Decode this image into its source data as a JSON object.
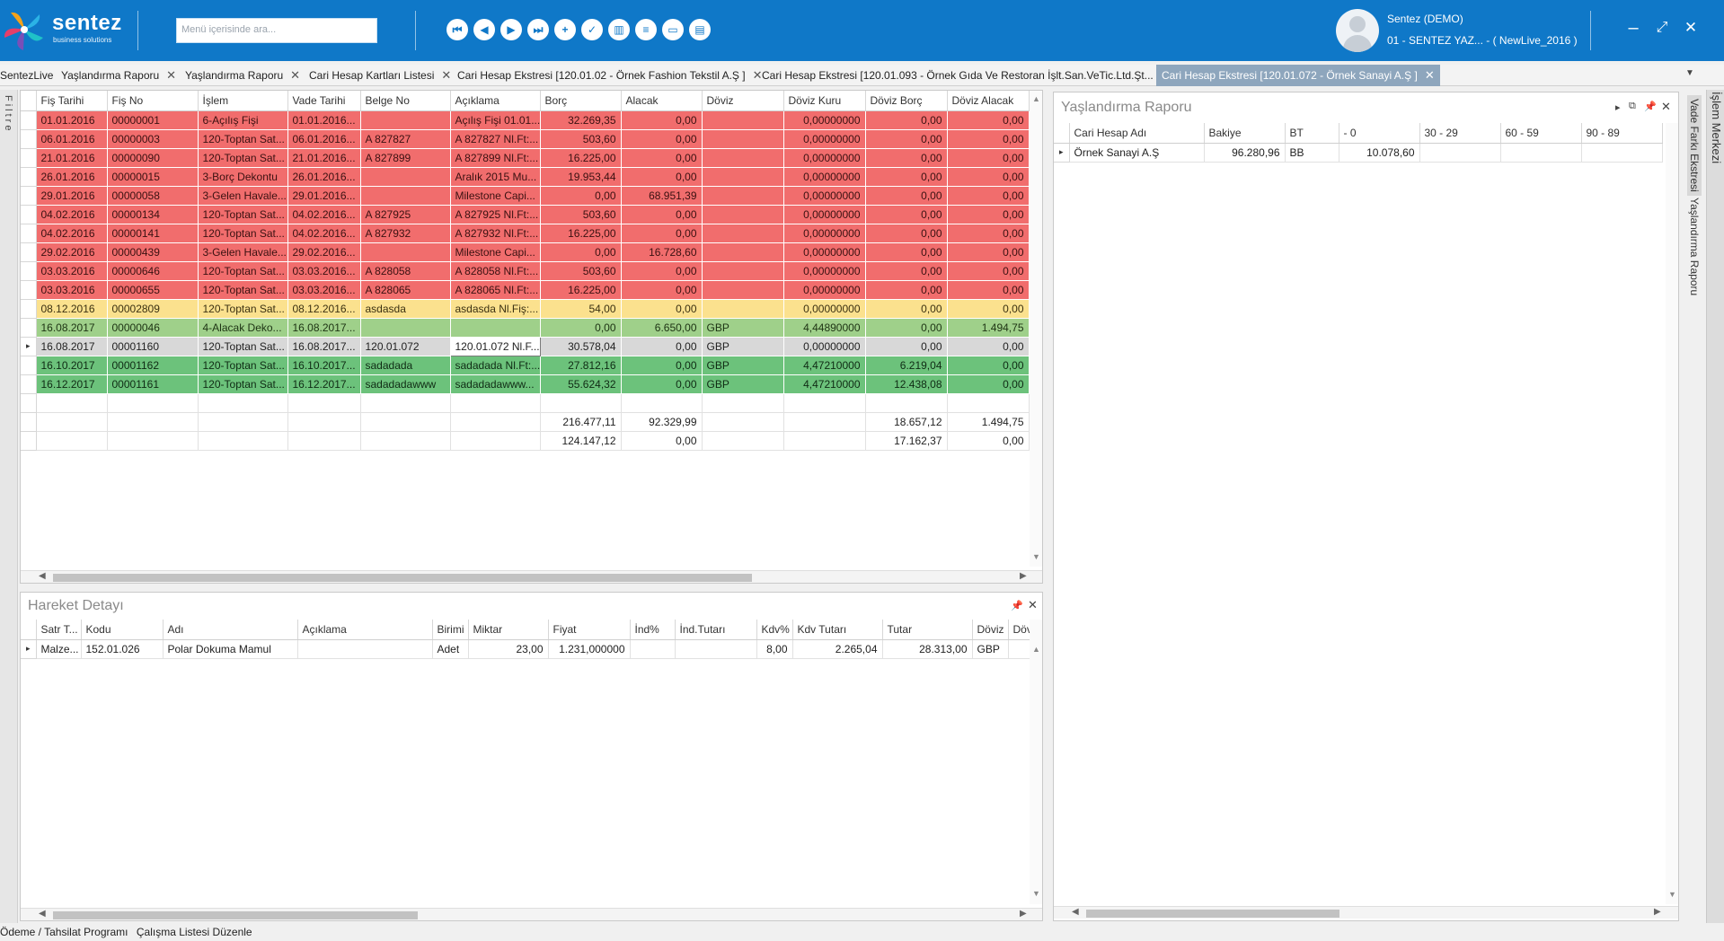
{
  "brand": {
    "name": "sentez",
    "tagline": "business solutions"
  },
  "search": {
    "placeholder": "Menü içerisinde ara..."
  },
  "toolbar": {
    "icons": [
      "first-record-icon",
      "previous-record-icon",
      "next-record-icon",
      "last-record-icon",
      "add-icon",
      "approve-icon",
      "delete-icon",
      "list-icon",
      "window-icon",
      "trash-icon"
    ]
  },
  "user": {
    "name": "Sentez (DEMO)",
    "company": "01 - SENTEZ YAZ... - ( NewLive_2016 )"
  },
  "window_controls": {
    "minimize": "–",
    "maximize": "⤢",
    "close": "✕"
  },
  "tabs": [
    {
      "label": "SentezLive",
      "closable": false
    },
    {
      "label": "Yaşlandırma Raporu",
      "closable": true
    },
    {
      "label": "Yaşlandırma Raporu",
      "closable": true
    },
    {
      "label": "Cari Hesap Kartları Listesi",
      "closable": true
    },
    {
      "label": "Cari Hesap Ekstresi [120.01.02 - Örnek Fashion Tekstil A.Ş ]",
      "closable": true
    },
    {
      "label": "Cari Hesap Ekstresi [120.01.093 - Örnek Gıda Ve Restoran İşlt.San.VeTic.Ltd.Şt...",
      "closable": true
    },
    {
      "label": "Cari Hesap Ekstresi [120.01.072 - Örnek Sanayi A.Ş ]",
      "closable": true,
      "active": true
    }
  ],
  "left_strip": {
    "label": "Filtre"
  },
  "right_strip": {
    "label1": "Vade Farkı Ekstresi",
    "label2": "Yaşlandırma Raporu",
    "label3": "İşlem Merkezi"
  },
  "ledger": {
    "columns": [
      "Fiş Tarihi",
      "Fiş No",
      "İşlem",
      "Vade Tarihi",
      "Belge No",
      "Açıklama",
      "Borç",
      "Alacak",
      "Döviz",
      "Döviz Kuru",
      "Döviz Borç",
      "Döviz Alacak"
    ],
    "rows": [
      {
        "style": "red",
        "cells": [
          "01.01.2016",
          "00000001",
          "6-Açılış Fişi",
          "01.01.2016...",
          "",
          "Açılış Fişi 01.01....",
          "32.269,35",
          "0,00",
          "",
          "0,00000000",
          "0,00",
          "0,00"
        ]
      },
      {
        "style": "red",
        "cells": [
          "06.01.2016",
          "00000003",
          "120-Toptan Sat...",
          "06.01.2016...",
          "A 827827",
          "A 827827 Nl.Ft:...",
          "503,60",
          "0,00",
          "",
          "0,00000000",
          "0,00",
          "0,00"
        ]
      },
      {
        "style": "red",
        "cells": [
          "21.01.2016",
          "00000090",
          "120-Toptan Sat...",
          "21.01.2016...",
          "A 827899",
          "A 827899 Nl.Ft:...",
          "16.225,00",
          "0,00",
          "",
          "0,00000000",
          "0,00",
          "0,00"
        ]
      },
      {
        "style": "red",
        "cells": [
          "26.01.2016",
          "00000015",
          "3-Borç Dekontu",
          "26.01.2016...",
          "",
          "Aralık 2015 Mu...",
          "19.953,44",
          "0,00",
          "",
          "0,00000000",
          "0,00",
          "0,00"
        ]
      },
      {
        "style": "red",
        "cells": [
          "29.01.2016",
          "00000058",
          "3-Gelen Havale...",
          "29.01.2016...",
          "",
          "Milestone Capi...",
          "0,00",
          "68.951,39",
          "",
          "0,00000000",
          "0,00",
          "0,00"
        ]
      },
      {
        "style": "red",
        "cells": [
          "04.02.2016",
          "00000134",
          "120-Toptan Sat...",
          "04.02.2016...",
          "A 827925",
          "A 827925 Nl.Ft:...",
          "503,60",
          "0,00",
          "",
          "0,00000000",
          "0,00",
          "0,00"
        ]
      },
      {
        "style": "red",
        "cells": [
          "04.02.2016",
          "00000141",
          "120-Toptan Sat...",
          "04.02.2016...",
          "A 827932",
          "A 827932 Nl.Ft:...",
          "16.225,00",
          "0,00",
          "",
          "0,00000000",
          "0,00",
          "0,00"
        ]
      },
      {
        "style": "red",
        "cells": [
          "29.02.2016",
          "00000439",
          "3-Gelen Havale...",
          "29.02.2016...",
          "",
          "Milestone Capi...",
          "0,00",
          "16.728,60",
          "",
          "0,00000000",
          "0,00",
          "0,00"
        ]
      },
      {
        "style": "red",
        "cells": [
          "03.03.2016",
          "00000646",
          "120-Toptan Sat...",
          "03.03.2016...",
          "A 828058",
          "A 828058 Nl.Ft:...",
          "503,60",
          "0,00",
          "",
          "0,00000000",
          "0,00",
          "0,00"
        ]
      },
      {
        "style": "red",
        "cells": [
          "03.03.2016",
          "00000655",
          "120-Toptan Sat...",
          "03.03.2016...",
          "A 828065",
          "A 828065 Nl.Ft:...",
          "16.225,00",
          "0,00",
          "",
          "0,00000000",
          "0,00",
          "0,00"
        ]
      },
      {
        "style": "yellow",
        "cells": [
          "08.12.2016",
          "00002809",
          "120-Toptan Sat...",
          "08.12.2016...",
          "asdasda",
          "asdasda Nl.Fiş:...",
          "54,00",
          "0,00",
          "",
          "0,00000000",
          "0,00",
          "0,00"
        ]
      },
      {
        "style": "lgreen",
        "cells": [
          "16.08.2017",
          "00000046",
          "4-Alacak Deko...",
          "16.08.2017...",
          "",
          "",
          "0,00",
          "6.650,00",
          "GBP",
          "4,44890000",
          "0,00",
          "1.494,75"
        ]
      },
      {
        "style": "grey",
        "selected": true,
        "cells": [
          "16.08.2017",
          "00001160",
          "120-Toptan Sat...",
          "16.08.2017...",
          "120.01.072",
          "120.01.072 Nl.F...",
          "30.578,04",
          "0,00",
          "GBP",
          "0,00000000",
          "0,00",
          "0,00"
        ]
      },
      {
        "style": "dgreen",
        "cells": [
          "16.10.2017",
          "00001162",
          "120-Toptan Sat...",
          "16.10.2017...",
          "sadadada",
          "sadadada Nl.Ft:...",
          "27.812,16",
          "0,00",
          "GBP",
          "4,47210000",
          "6.219,04",
          "0,00"
        ]
      },
      {
        "style": "dgreen",
        "cells": [
          "16.12.2017",
          "00001161",
          "120-Toptan Sat...",
          "16.12.2017...",
          "sadadadawww",
          "sadadadawww...",
          "55.624,32",
          "0,00",
          "GBP",
          "4,47210000",
          "12.438,08",
          "0,00"
        ]
      },
      {
        "style": "white",
        "cells": [
          "",
          "",
          "",
          "",
          "",
          "",
          "",
          "",
          "",
          "",
          "",
          ""
        ]
      }
    ],
    "totals": [
      {
        "cells": [
          "",
          "",
          "",
          "",
          "",
          "",
          "216.477,11",
          "92.329,99",
          "",
          "",
          "18.657,12",
          "1.494,75"
        ]
      },
      {
        "cells": [
          "",
          "",
          "",
          "",
          "",
          "",
          "124.147,12",
          "0,00",
          "",
          "",
          "17.162,37",
          "0,00"
        ]
      }
    ]
  },
  "movement": {
    "title": "Hareket Detayı",
    "columns": [
      "Satr T...",
      "Kodu",
      "Adı",
      "Açıklama",
      "Birimi",
      "Miktar",
      "Fiyat",
      "İnd%",
      "İnd.Tutarı",
      "Kdv%",
      "Kdv Tutarı",
      "Tutar",
      "Döviz",
      "Döv"
    ],
    "rows": [
      {
        "cells": [
          "Malze...",
          "152.01.026",
          "Polar Dokuma Mamul",
          "",
          "Adet",
          "23,00",
          "1.231,000000",
          "",
          "",
          "8,00",
          "2.265,04",
          "28.313,00",
          "GBP",
          ""
        ]
      }
    ]
  },
  "aging": {
    "title": "Yaşlandırma Raporu",
    "columns": [
      "Cari Hesap Adı",
      "Bakiye",
      "BT",
      "- 0",
      "30 - 29",
      "60 - 59",
      "90 - 89"
    ],
    "rows": [
      {
        "cells": [
          "Örnek Sanayi A.Ş",
          "96.280,96",
          "BB",
          "10.078,60",
          "",
          "",
          ""
        ]
      }
    ]
  },
  "statusbar": {
    "link1": "Ödeme / Tahsilat Programı",
    "link2": "Çalışma Listesi Düzenle"
  }
}
